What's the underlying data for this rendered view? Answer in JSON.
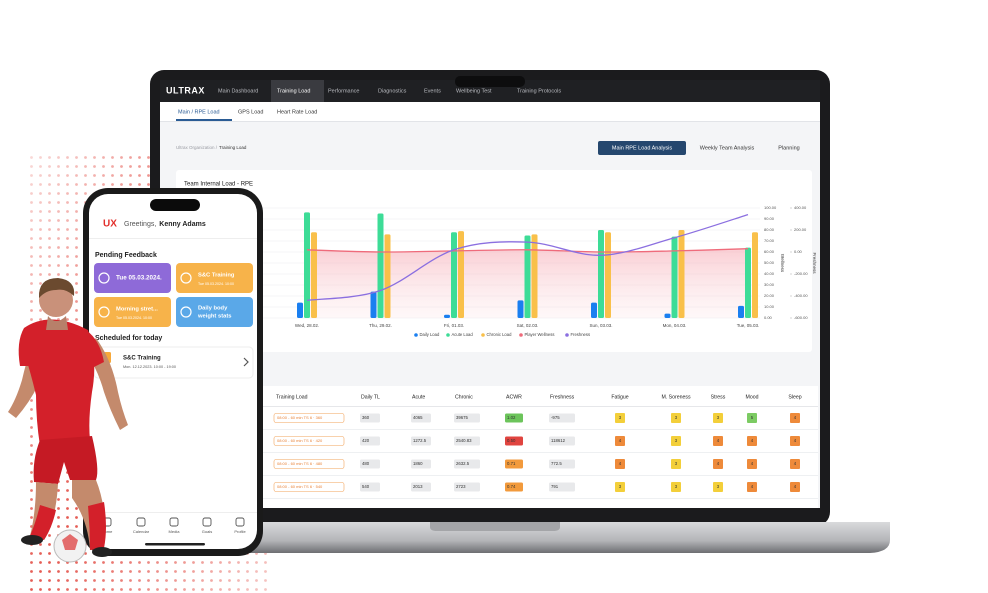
{
  "laptop": {
    "nav": {
      "logo": "ULTRAX",
      "items": [
        "Main Dashboard",
        "Training Load",
        "Performance",
        "Diagnostics",
        "Events",
        "Wellbeing Test",
        "Training Protocols"
      ]
    },
    "subtabs": [
      "Main / RPE Load",
      "GPS Load",
      "Heart Rate Load"
    ],
    "breadcrumb": {
      "parent": "Ultrax Organization /",
      "current": "Training Load"
    },
    "buttons": [
      "Main RPE Load Analysis",
      "Weekly Team Analysis",
      "Planning"
    ],
    "table": {
      "headers": [
        "Training Load",
        "Daily TL",
        "Acute",
        "Chronic",
        "ACWR",
        "Freshness",
        "Fatigue",
        "M. Soreness",
        "Stress",
        "Mood",
        "Sleep"
      ],
      "rows": [
        [
          "08:00 - 60 min TS 6 · 360",
          "360",
          "4065",
          "39675",
          "1.02",
          "-975",
          "3",
          "3",
          "3",
          "5",
          "4"
        ],
        [
          "08:00 - 60 min TS 6 · 420",
          "420",
          "1272.5",
          "2540.83",
          "0.50",
          "118612",
          "4",
          "3",
          "4",
          "4",
          "4"
        ],
        [
          "08:00 - 60 min TS 6 · 480",
          "480",
          "1860",
          "2632.5",
          "0.71",
          "772.5",
          "4",
          "3",
          "4",
          "4",
          "4"
        ],
        [
          "08:00 - 60 min TS 6 · 540",
          "540",
          "2013",
          "2723",
          "0.74",
          "791",
          "3",
          "3",
          "3",
          "4",
          "4"
        ]
      ]
    }
  },
  "chart_data": {
    "type": "bar",
    "title": "Team Internal Load - RPE",
    "categories": [
      "Wed, 28.02.",
      "Thu, 29.02.",
      "Fri, 01.03.",
      "Sat, 02.03.",
      "Sun, 03.03.",
      "Mon, 04.03.",
      "Tue, 05.03."
    ],
    "series": [
      {
        "name": "Daily Load",
        "color": "#1a7ff0",
        "values": [
          14,
          24,
          3,
          16,
          14,
          4,
          11
        ]
      },
      {
        "name": "Acute Load",
        "color": "#3ddc97",
        "values": [
          96,
          95,
          78,
          75,
          80,
          74,
          64
        ]
      },
      {
        "name": "Chronic Load",
        "color": "#f9c04a",
        "values": [
          78,
          76,
          79,
          76,
          78,
          80,
          78
        ]
      },
      {
        "name": "Player Wellness",
        "type": "line",
        "color": "#ef6b7b",
        "values": [
          62,
          60,
          61,
          62,
          60,
          61,
          63
        ]
      },
      {
        "name": "Freshness",
        "type": "line",
        "axis": "y2",
        "color": "#8b6fe0",
        "values": [
          -440,
          -350,
          20,
          90,
          -30,
          130,
          340
        ]
      }
    ],
    "ylim": [
      0,
      100
    ],
    "yticks": [
      {
        "value": 0,
        "label": "0.00"
      },
      {
        "value": 10,
        "label": "10.00"
      },
      {
        "value": 20,
        "label": "20.00"
      },
      {
        "value": 30,
        "label": "30.00"
      },
      {
        "value": 40,
        "label": "40.00"
      },
      {
        "value": 50,
        "label": "50.00"
      },
      {
        "value": 60,
        "label": "60.00"
      },
      {
        "value": 70,
        "label": "70.00"
      },
      {
        "value": 80,
        "label": "80.00"
      },
      {
        "value": 90,
        "label": "90.00"
      },
      {
        "value": 100,
        "label": "100.00"
      }
    ],
    "ylabel": "Wellness",
    "y2lim": [
      -600,
      400
    ],
    "y2ticks": [
      {
        "value": -600,
        "label": "-600.00"
      },
      {
        "value": -400,
        "label": "-400.00"
      },
      {
        "value": -200,
        "label": "-200.00"
      },
      {
        "value": 0,
        "label": "0.00"
      },
      {
        "value": 200,
        "label": "200.00"
      },
      {
        "value": 400,
        "label": "400.00"
      }
    ],
    "y2label": "Freshness",
    "grid": true
  },
  "phone": {
    "logo": "UX",
    "greeting": "Greetings,",
    "user": "Kenny Adams",
    "pending_title": "Pending Feedback",
    "cards": [
      {
        "title": "Tue 05.03.2024."
      },
      {
        "title": "S&C Training",
        "subtitle": "Tue 05.03.2024. 10:00"
      },
      {
        "title": "Morning stret...",
        "subtitle": "Tue 05.03.2024. 10:00"
      },
      {
        "lines": [
          "Daily body",
          "weight stats"
        ]
      }
    ],
    "scheduled_title": "Scheduled for today",
    "scheduled": {
      "title": "S&C Training",
      "time": "Mon. 12.12.2023. 10:00 - 19:00"
    },
    "nav": [
      "Home",
      "Calendar",
      "Media",
      "Goals",
      "Profile"
    ]
  }
}
